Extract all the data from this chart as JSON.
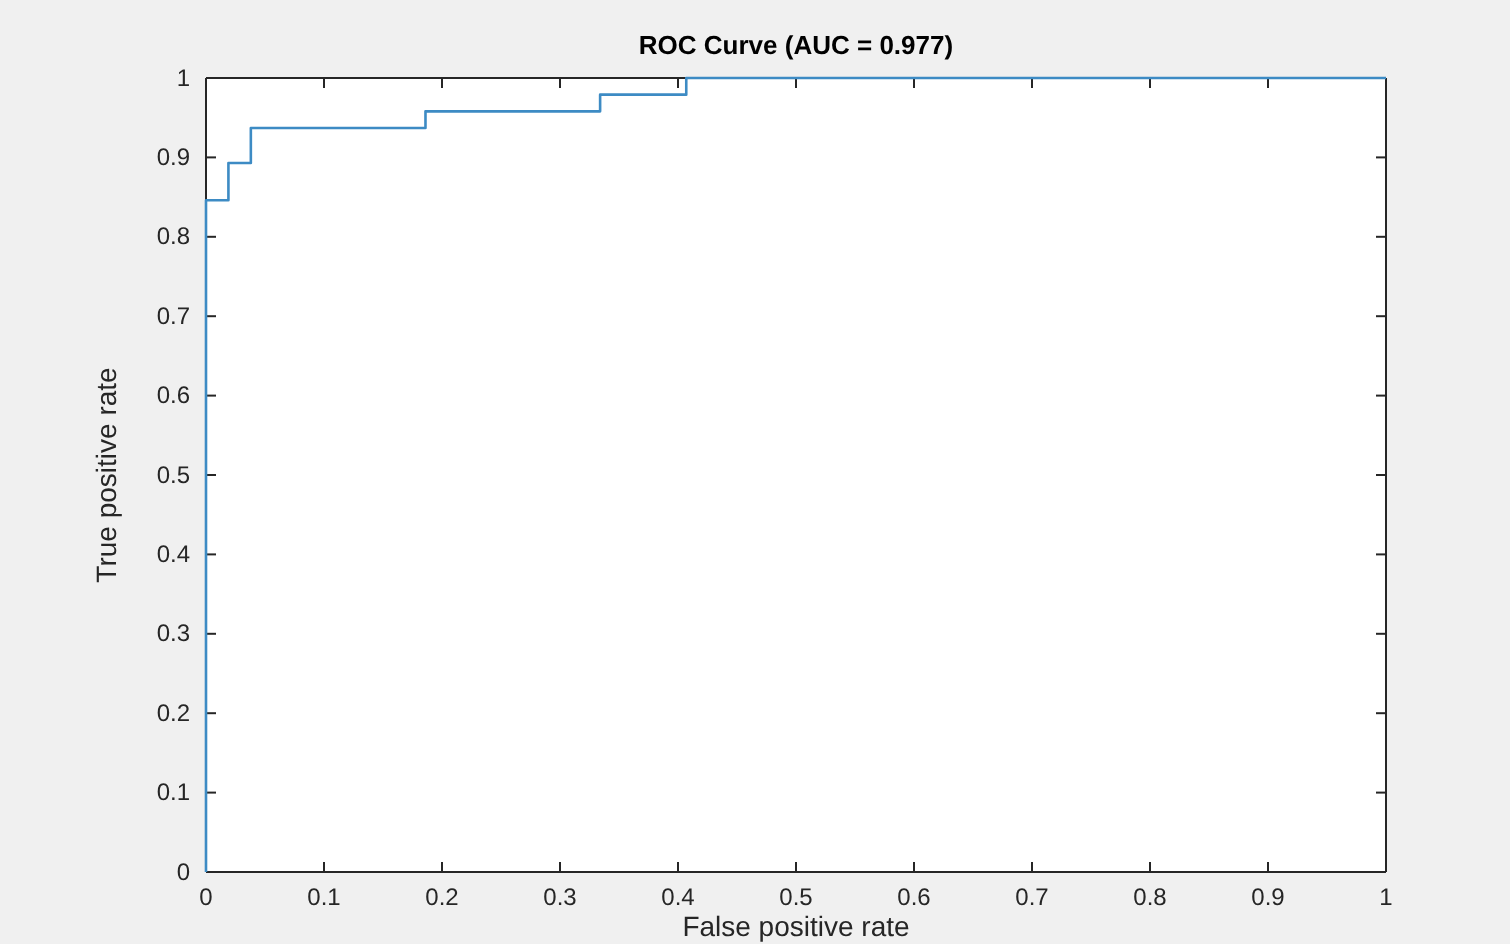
{
  "chart_data": {
    "type": "step",
    "title": "ROC Curve (AUC = 0.977)",
    "xlabel": "False positive rate",
    "ylabel": "True positive rate",
    "x": [
      0,
      0,
      0.019,
      0.019,
      0.038,
      0.038,
      0.186,
      0.186,
      0.334,
      0.334,
      0.407,
      0.407,
      1
    ],
    "series": [
      {
        "color": "#3d8bc4",
        "values": [
          0,
          0.846,
          0.846,
          0.893,
          0.893,
          0.937,
          0.937,
          0.958,
          0.958,
          0.979,
          0.979,
          1,
          1
        ]
      }
    ],
    "xlim": [
      0,
      1
    ],
    "ylim": [
      0,
      1
    ],
    "xticks": [
      0,
      0.1,
      0.2,
      0.3,
      0.4,
      0.5,
      0.6,
      0.7,
      0.8,
      0.9,
      1
    ],
    "yticks": [
      0,
      0.1,
      0.2,
      0.3,
      0.4,
      0.5,
      0.6,
      0.7,
      0.8,
      0.9,
      1
    ],
    "grid": false,
    "legend": false
  }
}
